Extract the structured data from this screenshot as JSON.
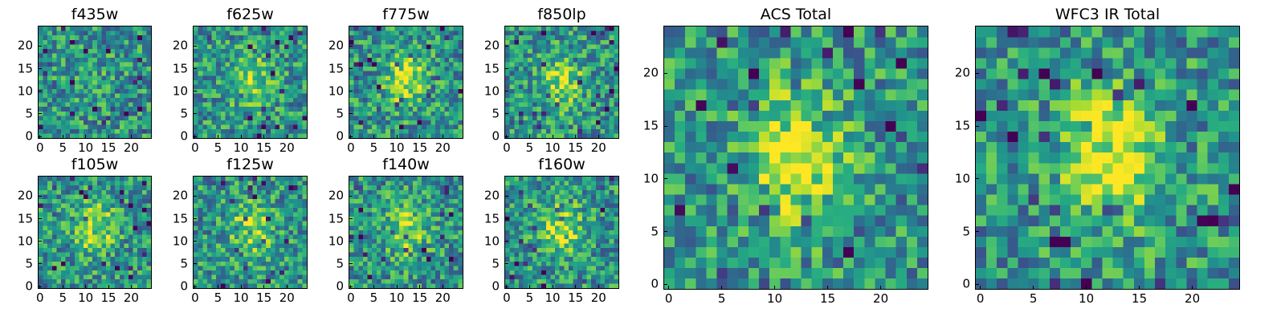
{
  "chart_data": [
    {
      "type": "heatmap",
      "title": "f435w",
      "xticks": [
        "0",
        "5",
        "10",
        "15",
        "20"
      ],
      "yticks": [
        "0",
        "5",
        "10",
        "15",
        "20"
      ],
      "xlim": [
        0,
        25
      ],
      "ylim": [
        0,
        25
      ],
      "colormap": "viridis",
      "blob": 0.05
    },
    {
      "type": "heatmap",
      "title": "f625w",
      "xticks": [
        "0",
        "5",
        "10",
        "15",
        "20"
      ],
      "yticks": [
        "0",
        "5",
        "10",
        "15",
        "20"
      ],
      "xlim": [
        0,
        25
      ],
      "ylim": [
        0,
        25
      ],
      "colormap": "viridis",
      "blob": 0.35
    },
    {
      "type": "heatmap",
      "title": "f775w",
      "xticks": [
        "0",
        "5",
        "10",
        "15",
        "20"
      ],
      "yticks": [
        "0",
        "5",
        "10",
        "15",
        "20"
      ],
      "xlim": [
        0,
        25
      ],
      "ylim": [
        0,
        25
      ],
      "colormap": "viridis",
      "blob": 0.4
    },
    {
      "type": "heatmap",
      "title": "f850lp",
      "xticks": [
        "0",
        "5",
        "10",
        "15",
        "20"
      ],
      "yticks": [
        "0",
        "5",
        "10",
        "15",
        "20"
      ],
      "xlim": [
        0,
        25
      ],
      "ylim": [
        0,
        25
      ],
      "colormap": "viridis",
      "blob": 0.35
    },
    {
      "type": "heatmap",
      "title": "f105w",
      "xticks": [
        "0",
        "5",
        "10",
        "15",
        "20"
      ],
      "yticks": [
        "0",
        "5",
        "10",
        "15",
        "20"
      ],
      "xlim": [
        0,
        25
      ],
      "ylim": [
        0,
        25
      ],
      "colormap": "viridis",
      "blob": 0.4
    },
    {
      "type": "heatmap",
      "title": "f125w",
      "xticks": [
        "0",
        "5",
        "10",
        "15",
        "20"
      ],
      "yticks": [
        "0",
        "5",
        "10",
        "15",
        "20"
      ],
      "xlim": [
        0,
        25
      ],
      "ylim": [
        0,
        25
      ],
      "colormap": "viridis",
      "blob": 0.35
    },
    {
      "type": "heatmap",
      "title": "f140w",
      "xticks": [
        "0",
        "5",
        "10",
        "15",
        "20"
      ],
      "yticks": [
        "0",
        "5",
        "10",
        "15",
        "20"
      ],
      "xlim": [
        0,
        25
      ],
      "ylim": [
        0,
        25
      ],
      "colormap": "viridis",
      "blob": 0.35
    },
    {
      "type": "heatmap",
      "title": "f160w",
      "xticks": [
        "0",
        "5",
        "10",
        "15",
        "20"
      ],
      "yticks": [
        "0",
        "5",
        "10",
        "15",
        "20"
      ],
      "xlim": [
        0,
        25
      ],
      "ylim": [
        0,
        25
      ],
      "colormap": "viridis",
      "blob": 0.4
    },
    {
      "type": "heatmap",
      "title": "ACS Total",
      "xticks": [
        "0",
        "5",
        "10",
        "15",
        "20"
      ],
      "yticks": [
        "0",
        "5",
        "10",
        "15",
        "20"
      ],
      "xlim": [
        0,
        25
      ],
      "ylim": [
        0,
        25
      ],
      "colormap": "viridis",
      "blob": 0.55
    },
    {
      "type": "heatmap",
      "title": "WFC3 IR Total",
      "xticks": [
        "0",
        "5",
        "10",
        "15",
        "20"
      ],
      "yticks": [
        "0",
        "5",
        "10",
        "15",
        "20"
      ],
      "xlim": [
        0,
        25
      ],
      "ylim": [
        0,
        25
      ],
      "colormap": "viridis",
      "blob": 0.5
    }
  ]
}
